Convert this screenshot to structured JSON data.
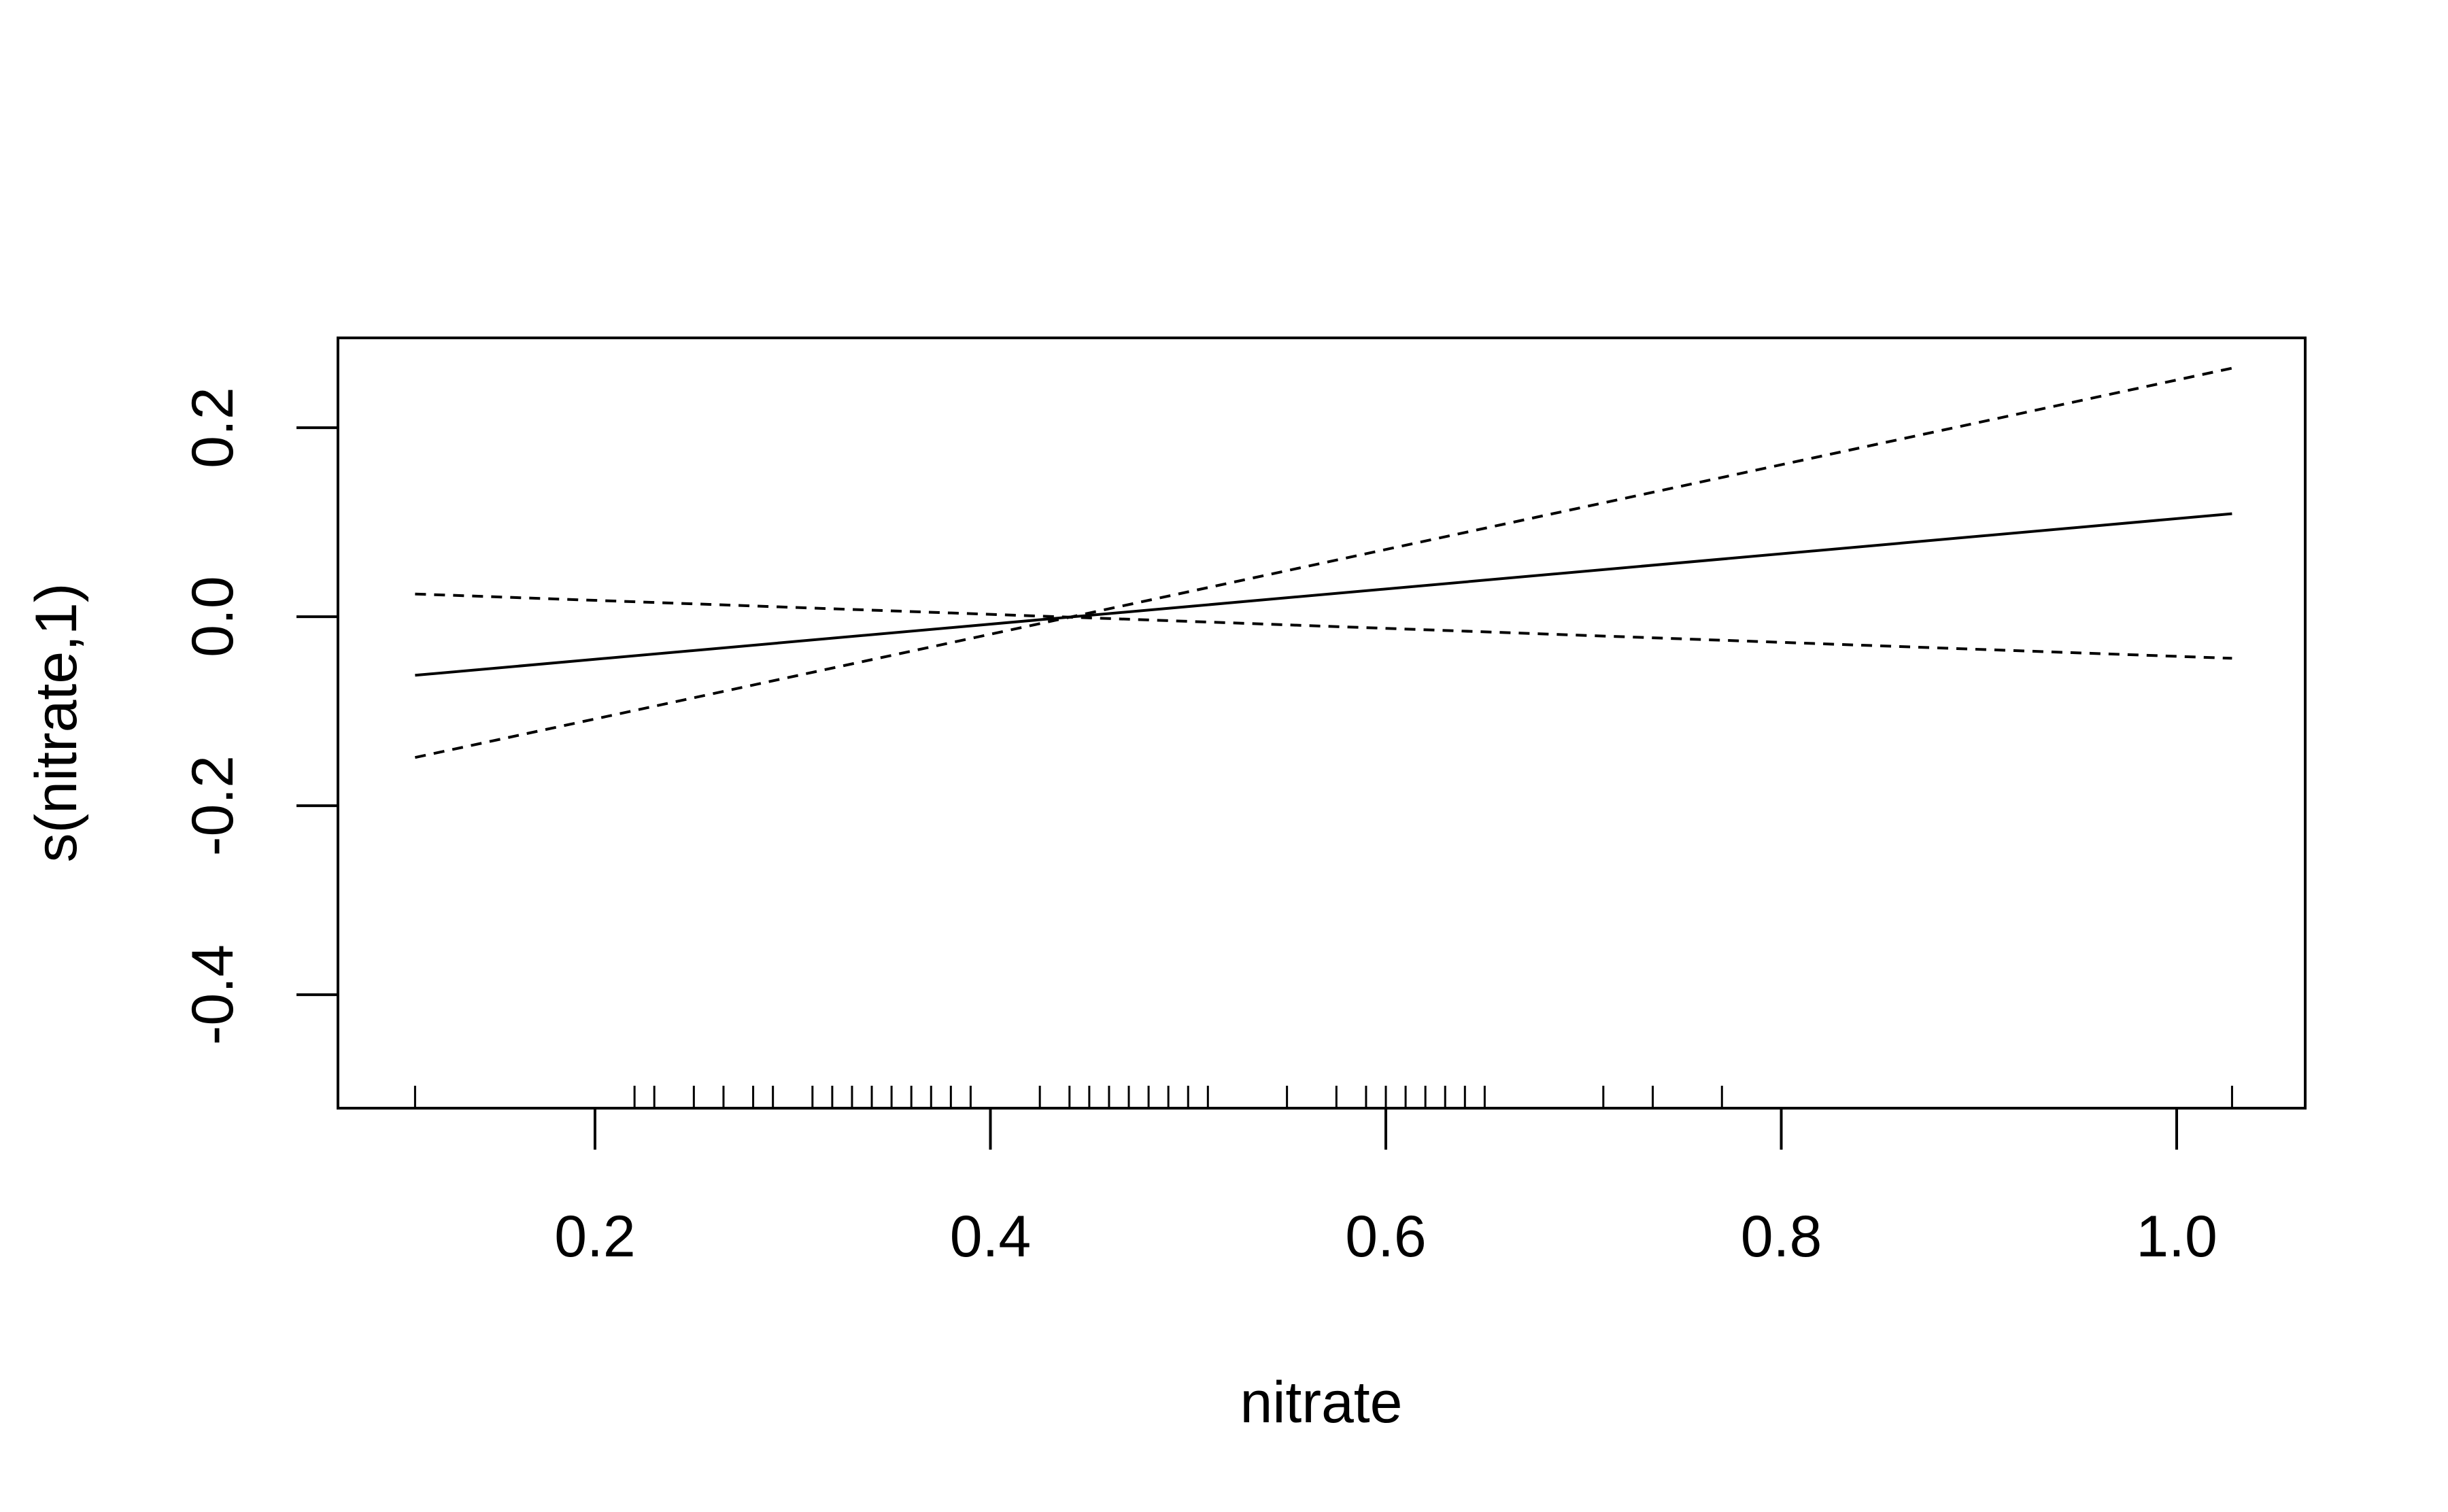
{
  "chart_data": {
    "type": "line",
    "title": "",
    "xlabel": "nitrate",
    "ylabel": "s(nitrate,1)",
    "xlim": [
      0.07,
      1.065
    ],
    "ylim": [
      -0.52,
      0.295
    ],
    "x_ticks": [
      0.2,
      0.4,
      0.6,
      0.8,
      1.0
    ],
    "x_tick_labels": [
      "0.2",
      "0.4",
      "0.6",
      "0.8",
      "1.0"
    ],
    "y_ticks": [
      -0.4,
      -0.2,
      0.0,
      0.2
    ],
    "y_tick_labels": [
      "-0.4",
      "-0.2",
      "0.0",
      "0.2"
    ],
    "grid": false,
    "legend": "none",
    "series": [
      {
        "style": "solid",
        "x": [
          0.109,
          1.028
        ],
        "y": [
          -0.062,
          0.109
        ]
      },
      {
        "style": "dashed",
        "x": [
          0.109,
          1.028
        ],
        "y": [
          -0.149,
          0.263
        ]
      },
      {
        "style": "dashed",
        "x": [
          0.109,
          1.028
        ],
        "y": [
          0.024,
          -0.044
        ]
      }
    ],
    "rug": [
      0.109,
      0.22,
      0.23,
      0.25,
      0.265,
      0.28,
      0.29,
      0.31,
      0.32,
      0.33,
      0.34,
      0.35,
      0.36,
      0.37,
      0.38,
      0.39,
      0.425,
      0.44,
      0.45,
      0.46,
      0.47,
      0.48,
      0.49,
      0.5,
      0.51,
      0.55,
      0.575,
      0.59,
      0.6,
      0.61,
      0.62,
      0.63,
      0.64,
      0.65,
      0.71,
      0.735,
      0.77,
      1.028
    ]
  }
}
